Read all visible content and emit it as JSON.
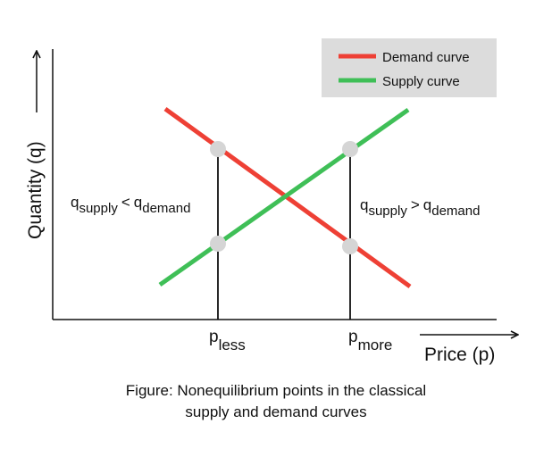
{
  "axes": {
    "y_label": "Quantity (q)",
    "x_label": "Price (p)"
  },
  "legend": {
    "items": [
      {
        "label": "Demand curve",
        "color": "#ee4035"
      },
      {
        "label": "Supply curve",
        "color": "#3fbf57"
      }
    ],
    "background": "#dcdcdc"
  },
  "ticks": {
    "less": {
      "base": "p",
      "sub": "less"
    },
    "more": {
      "base": "p",
      "sub": "more"
    }
  },
  "annotations": {
    "left": {
      "q1": "q",
      "sub1": "supply",
      "op": "<",
      "q2": "q",
      "sub2": "demand"
    },
    "right": {
      "q1": "q",
      "sub1": "supply",
      "op": ">",
      "q2": "q",
      "sub2": "demand"
    }
  },
  "point_color": "#d5d5d5",
  "caption": {
    "line1": "Figure: Nonequilibrium points in the classical",
    "line2": "supply and demand curves"
  }
}
